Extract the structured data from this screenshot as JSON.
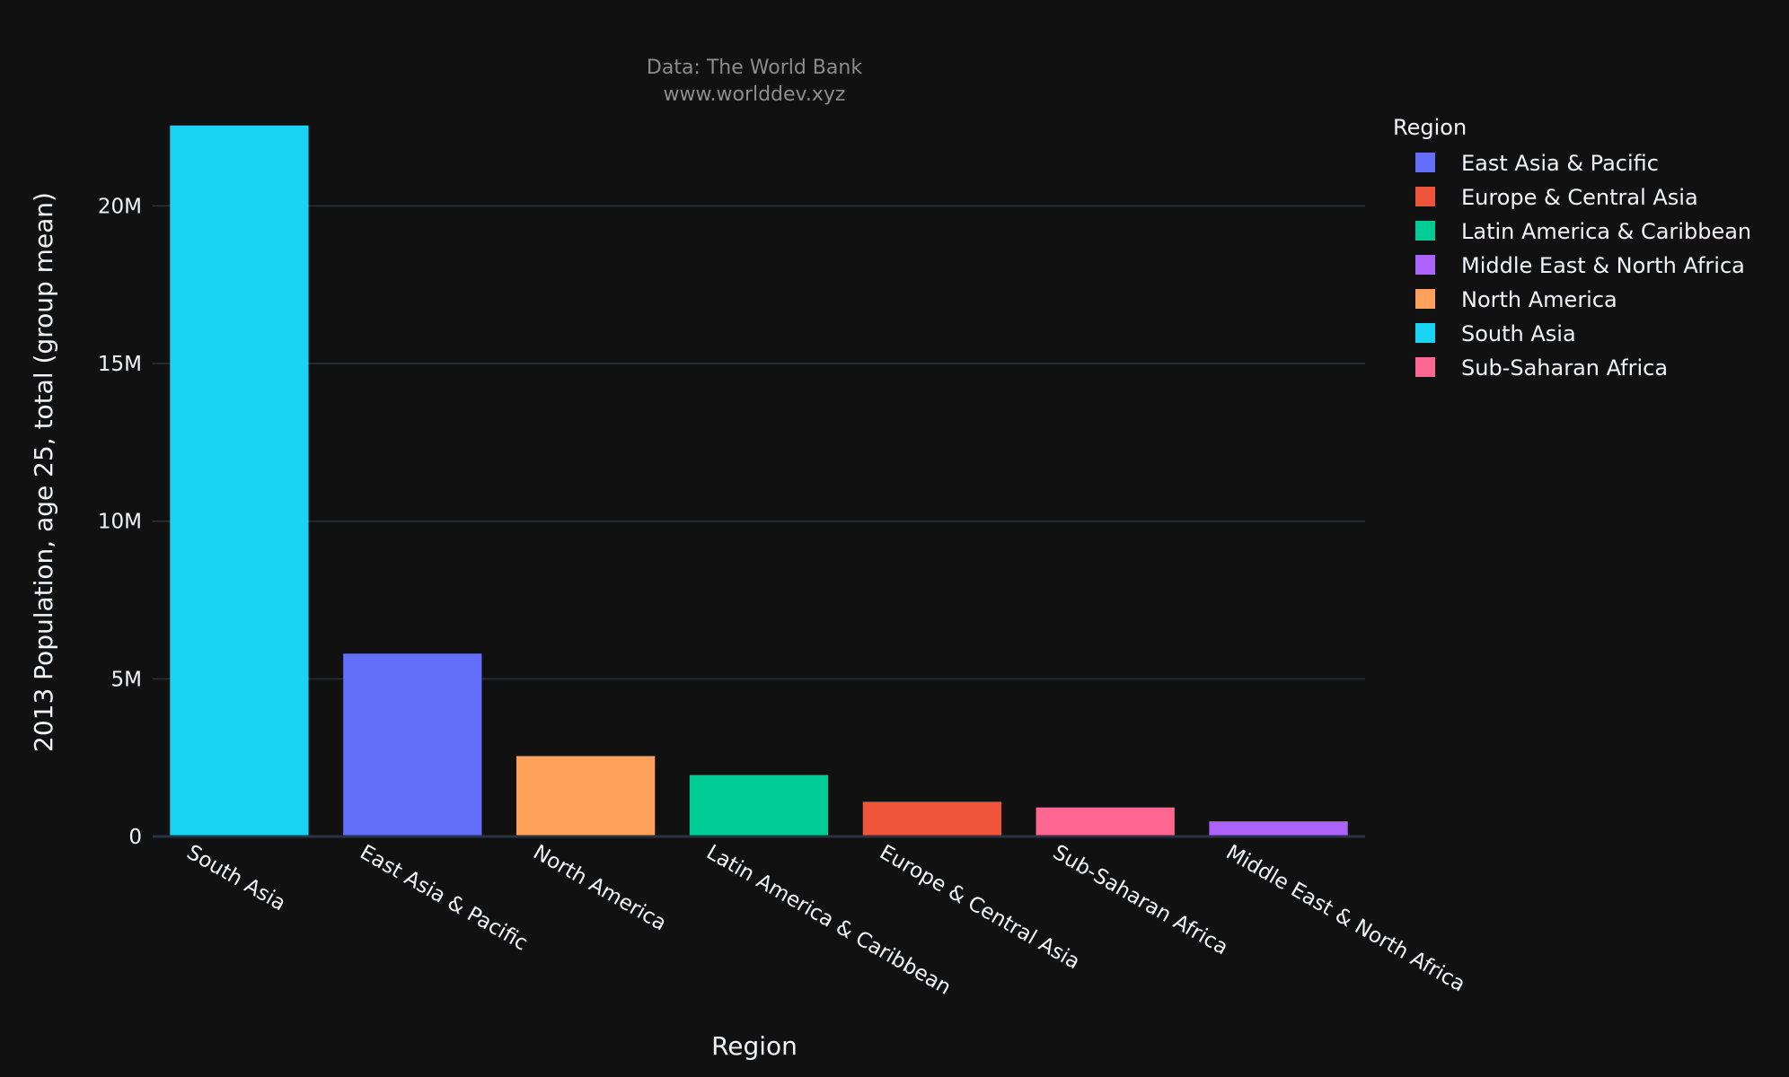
{
  "chart_data": {
    "type": "bar",
    "title": "Data: The World Bank",
    "subtitle": "www.worlddev.xyz",
    "xlabel": "Region",
    "ylabel": "2013 Population, age 25, total (group mean)",
    "ylim": [
      0,
      23000000
    ],
    "yticks": [
      {
        "value": 0,
        "label": "0"
      },
      {
        "value": 5000000,
        "label": "5M"
      },
      {
        "value": 10000000,
        "label": "10M"
      },
      {
        "value": 15000000,
        "label": "15M"
      },
      {
        "value": 20000000,
        "label": "20M"
      }
    ],
    "grid": true,
    "legend_position": "top-right",
    "legend_title": "Region",
    "categories": [
      "South Asia",
      "East Asia & Pacific",
      "North America",
      "Latin America & Caribbean",
      "Europe & Central Asia",
      "Sub-Saharan Africa",
      "Middle East & North Africa"
    ],
    "values": [
      22550000,
      5800000,
      2550000,
      1950000,
      1100000,
      920000,
      480000
    ],
    "colors": {
      "South Asia": "#19d3f3",
      "East Asia & Pacific": "#636efa",
      "North America": "#ffa15a",
      "Latin America & Caribbean": "#00cc96",
      "Europe & Central Asia": "#ef553b",
      "Sub-Saharan Africa": "#ff6692",
      "Middle East & North Africa": "#ab63fa"
    },
    "legend_entries": [
      "East Asia & Pacific",
      "Europe & Central Asia",
      "Latin America & Caribbean",
      "Middle East & North Africa",
      "North America",
      "South Asia",
      "Sub-Saharan Africa"
    ]
  }
}
